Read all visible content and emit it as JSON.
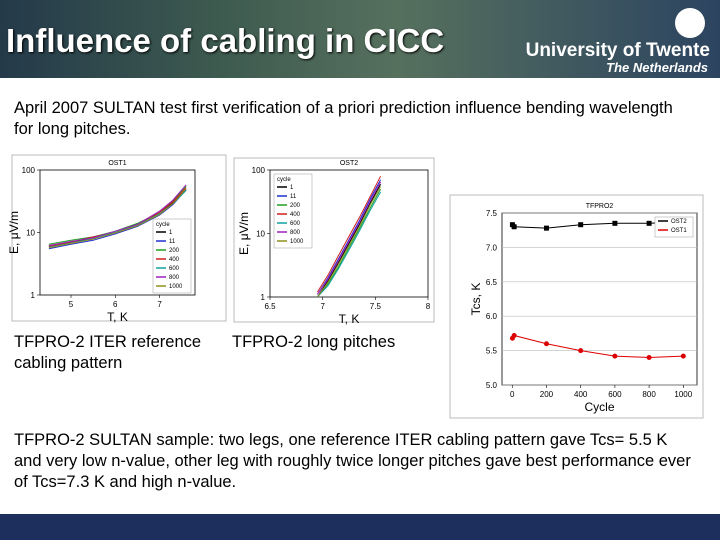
{
  "header": {
    "title": "Influence of cabling in CICC",
    "logo_line1": "University of Twente",
    "logo_line2": "The Netherlands"
  },
  "body": {
    "intro": "April 2007 SULTAN test first verification of a priori prediction influence bending wavelength for long pitches.",
    "caption_left": "TFPRO-2 ITER reference  cabling pattern",
    "caption_middle": "TFPRO-2 long pitches",
    "conclusion": "TFPRO-2 SULTAN sample: two legs, one reference ITER cabling pattern gave Tcs= 5.5 K and very low n-value, other leg with roughly twice longer pitches gave best performance ever of Tcs=7.3 K and high n-value."
  },
  "chart_data": [
    {
      "type": "line",
      "title": "OST1",
      "xlabel": "T, K",
      "ylabel": "E, μV/m",
      "yscale": "log",
      "legend": "lower right",
      "legend_title": "cycle",
      "x": [
        4.5,
        5,
        5.5,
        6,
        6.5,
        7,
        7.3,
        7.6
      ],
      "xlim": [
        4.3,
        7.8
      ],
      "xticks": [
        5,
        6,
        7
      ],
      "ylim": [
        1,
        100
      ],
      "yticks": [
        1,
        10,
        100
      ],
      "series": [
        {
          "name": "1",
          "color": "#000000",
          "values": [
            6,
            7,
            8,
            10,
            13,
            20,
            30,
            50
          ]
        },
        {
          "name": "11",
          "color": "#2030d0",
          "values": [
            5.5,
            6.5,
            7.5,
            9.5,
            12.5,
            19,
            28,
            48
          ]
        },
        {
          "name": "200",
          "color": "#20a020",
          "values": [
            6.5,
            7.5,
            8.5,
            10.5,
            14,
            21,
            32,
            55
          ]
        },
        {
          "name": "400",
          "color": "#d02020",
          "values": [
            6,
            7,
            8.5,
            10,
            13.5,
            21,
            31,
            52
          ]
        },
        {
          "name": "600",
          "color": "#10a0a0",
          "values": [
            5.8,
            6.8,
            8,
            10,
            13,
            20,
            29,
            47
          ]
        },
        {
          "name": "800",
          "color": "#a020c0",
          "values": [
            6.2,
            7.2,
            8.2,
            10.5,
            13.5,
            22,
            33,
            58
          ]
        },
        {
          "name": "1000",
          "color": "#909020",
          "values": [
            5.7,
            6.7,
            7.8,
            9.8,
            12.8,
            19.5,
            29,
            50
          ]
        }
      ]
    },
    {
      "type": "line",
      "title": "OST2",
      "xlabel": "T, K",
      "ylabel": "E, μV/m",
      "yscale": "log",
      "legend": "upper left",
      "legend_title": "cycle",
      "x": [
        6.95,
        7.05,
        7.15,
        7.25,
        7.35,
        7.45,
        7.55
      ],
      "xlim": [
        6.5,
        8
      ],
      "xticks": [
        6.5,
        7,
        7.5,
        8
      ],
      "ylim": [
        1,
        100
      ],
      "yticks": [
        1,
        10,
        100
      ],
      "series": [
        {
          "name": "1",
          "color": "#000000",
          "values": [
            1,
            1.8,
            3.5,
            7,
            14,
            30,
            60
          ]
        },
        {
          "name": "11",
          "color": "#2030d0",
          "values": [
            1.1,
            2,
            4,
            8,
            16,
            35,
            70
          ]
        },
        {
          "name": "200",
          "color": "#20a020",
          "values": [
            1,
            1.6,
            3,
            6,
            12,
            25,
            50
          ]
        },
        {
          "name": "400",
          "color": "#d02020",
          "values": [
            1.2,
            2.2,
            4.5,
            9,
            18,
            38,
            80
          ]
        },
        {
          "name": "600",
          "color": "#10a0a0",
          "values": [
            1,
            1.5,
            2.8,
            5.5,
            11,
            23,
            45
          ]
        },
        {
          "name": "800",
          "color": "#a020c0",
          "values": [
            1.1,
            1.9,
            3.8,
            7.5,
            15,
            32,
            65
          ]
        },
        {
          "name": "1000",
          "color": "#909020",
          "values": [
            1,
            1.7,
            3.3,
            6.5,
            13,
            28,
            55
          ]
        }
      ]
    },
    {
      "type": "line",
      "title": "TFPRO2",
      "xlabel": "Cycle",
      "ylabel": "Tcs, K",
      "legend": "upper right",
      "grid": true,
      "x": [
        1,
        11,
        200,
        400,
        600,
        800,
        1000
      ],
      "xlim": [
        -60,
        1080
      ],
      "xticks": [
        0,
        200,
        400,
        600,
        800,
        1000
      ],
      "ylim": [
        5,
        7.5
      ],
      "yticks": [
        {
          "value": 5,
          "label": "5.0"
        },
        5.5,
        {
          "value": 6,
          "label": "6.0"
        },
        6.5,
        {
          "value": 7,
          "label": "7.0"
        },
        7.5
      ],
      "series": [
        {
          "name": "OST2",
          "color": "#000000",
          "marker": "square",
          "values": [
            7.33,
            7.3,
            7.28,
            7.33,
            7.35,
            7.35,
            7.37
          ]
        },
        {
          "name": "OST1",
          "color": "#dd0000",
          "marker": "circle",
          "values": [
            5.68,
            5.72,
            5.6,
            5.5,
            5.42,
            5.4,
            5.42
          ]
        }
      ]
    }
  ]
}
